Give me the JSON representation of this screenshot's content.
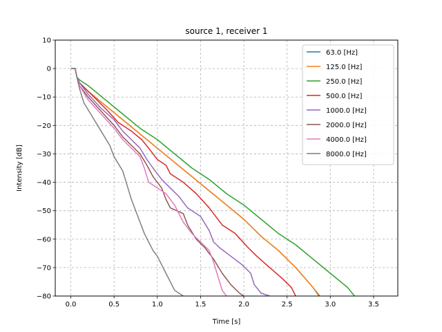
{
  "chart_data": {
    "type": "line",
    "title": "source 1, receiver 1",
    "xlabel": "Time [s]",
    "ylabel": "Intensity [dB]",
    "xlim": [
      -0.18,
      3.78
    ],
    "ylim": [
      -80,
      10
    ],
    "xticks": [
      0.0,
      0.5,
      1.0,
      1.5,
      2.0,
      2.5,
      3.0,
      3.5
    ],
    "xtick_labels": [
      "0.0",
      "0.5",
      "1.0",
      "1.5",
      "2.0",
      "2.5",
      "3.0",
      "3.5"
    ],
    "yticks": [
      10,
      0,
      -10,
      -20,
      -30,
      -40,
      -50,
      -60,
      -70,
      -80
    ],
    "ytick_labels": [
      "10",
      "0",
      "−10",
      "−20",
      "−30",
      "−40",
      "−50",
      "−60",
      "−70",
      "−80"
    ],
    "grid": true,
    "legend_position": "top-right",
    "series": [
      {
        "name": "63.0 [Hz]",
        "color": "#1f77b4",
        "x": [
          0.0,
          0.05,
          0.07,
          0.1,
          0.2,
          0.4,
          0.6,
          0.8,
          1.0,
          1.2,
          1.4,
          1.6,
          1.8,
          2.0,
          2.2,
          2.4,
          2.6,
          2.8,
          2.87
        ],
        "y": [
          0,
          0,
          -3,
          -5,
          -8,
          -13,
          -18,
          -23,
          -28,
          -33,
          -38,
          -43,
          -48,
          -53,
          -59,
          -64,
          -70,
          -77,
          -80
        ]
      },
      {
        "name": "125.0 [Hz]",
        "color": "#ff7f0e",
        "x": [
          0.0,
          0.05,
          0.07,
          0.1,
          0.2,
          0.4,
          0.6,
          0.8,
          1.0,
          1.2,
          1.4,
          1.6,
          1.8,
          2.0,
          2.2,
          2.4,
          2.6,
          2.8,
          2.88
        ],
        "y": [
          0,
          0,
          -3,
          -5,
          -8,
          -13,
          -18,
          -23,
          -28,
          -33,
          -38,
          -43,
          -48,
          -53,
          -59,
          -64,
          -70,
          -77,
          -80
        ]
      },
      {
        "name": "250.0 [Hz]",
        "color": "#2ca02c",
        "x": [
          0.0,
          0.05,
          0.07,
          0.1,
          0.2,
          0.4,
          0.6,
          0.8,
          1.0,
          1.2,
          1.4,
          1.6,
          1.8,
          2.0,
          2.2,
          2.4,
          2.6,
          2.8,
          3.0,
          3.2,
          3.28
        ],
        "y": [
          0,
          0,
          -3,
          -4,
          -6,
          -11,
          -16,
          -21,
          -25,
          -30,
          -35,
          -39,
          -44,
          -48,
          -53,
          -58,
          -62,
          -67,
          -72,
          -77,
          -80
        ]
      },
      {
        "name": "500.0 [Hz]",
        "color": "#d62728",
        "x": [
          0.0,
          0.05,
          0.07,
          0.1,
          0.2,
          0.4,
          0.55,
          0.7,
          0.82,
          0.9,
          1.0,
          1.1,
          1.15,
          1.3,
          1.45,
          1.6,
          1.75,
          1.9,
          2.05,
          2.15,
          2.3,
          2.45,
          2.55,
          2.6
        ],
        "y": [
          0,
          0,
          -3,
          -5,
          -8,
          -14,
          -19,
          -22,
          -25,
          -28,
          -32,
          -34,
          -37,
          -40,
          -44,
          -49,
          -55,
          -58,
          -63,
          -66,
          -70,
          -74,
          -77,
          -80
        ]
      },
      {
        "name": "1000.0 [Hz]",
        "color": "#9467bd",
        "x": [
          0.0,
          0.05,
          0.07,
          0.1,
          0.2,
          0.35,
          0.5,
          0.6,
          0.7,
          0.8,
          0.88,
          0.95,
          1.05,
          1.15,
          1.25,
          1.35,
          1.5,
          1.6,
          1.65,
          1.72,
          1.85,
          1.98,
          2.08,
          2.12,
          2.2,
          2.3
        ],
        "y": [
          0,
          0,
          -3,
          -5,
          -9,
          -14,
          -18,
          -22,
          -25,
          -28,
          -32,
          -35,
          -39,
          -42,
          -45,
          -49,
          -52,
          -57,
          -61,
          -63,
          -66,
          -69,
          -72,
          -76,
          -79,
          -80
        ]
      },
      {
        "name": "2000.0 [Hz]",
        "color": "#8c564b",
        "x": [
          0.0,
          0.05,
          0.07,
          0.1,
          0.2,
          0.35,
          0.5,
          0.6,
          0.7,
          0.8,
          0.88,
          0.95,
          1.05,
          1.1,
          1.15,
          1.3,
          1.35,
          1.45,
          1.55,
          1.65,
          1.75,
          1.85,
          1.95,
          2.0
        ],
        "y": [
          0,
          0,
          -3,
          -6,
          -10,
          -15,
          -20,
          -24,
          -27,
          -30,
          -34,
          -38,
          -42,
          -46,
          -49,
          -51,
          -55,
          -60,
          -63,
          -67,
          -72,
          -76,
          -79,
          -80
        ]
      },
      {
        "name": "4000.0 [Hz]",
        "color": "#e377c2",
        "x": [
          0.0,
          0.05,
          0.07,
          0.1,
          0.2,
          0.35,
          0.5,
          0.6,
          0.7,
          0.8,
          0.85,
          0.9,
          1.0,
          1.1,
          1.2,
          1.3,
          1.4,
          1.5,
          1.6,
          1.65,
          1.7,
          1.75,
          1.8
        ],
        "y": [
          0,
          0,
          -3,
          -6,
          -11,
          -16,
          -21,
          -25,
          -28,
          -31,
          -35,
          -40,
          -42,
          -44,
          -48,
          -54,
          -58,
          -61,
          -64,
          -68,
          -73,
          -78,
          -80
        ]
      },
      {
        "name": "8000.0 [Hz]",
        "color": "#7f7f7f",
        "x": [
          0.0,
          0.05,
          0.07,
          0.1,
          0.15,
          0.25,
          0.35,
          0.45,
          0.5,
          0.6,
          0.65,
          0.7,
          0.75,
          0.8,
          0.85,
          0.9,
          0.95,
          1.0,
          1.05,
          1.1,
          1.15,
          1.2,
          1.25,
          1.3
        ],
        "y": [
          0,
          0,
          -3,
          -7,
          -12,
          -17,
          -22,
          -27,
          -31,
          -36,
          -41,
          -46,
          -50,
          -54,
          -58,
          -61,
          -64,
          -66,
          -69,
          -72,
          -75,
          -78,
          -79,
          -80
        ]
      }
    ]
  }
}
